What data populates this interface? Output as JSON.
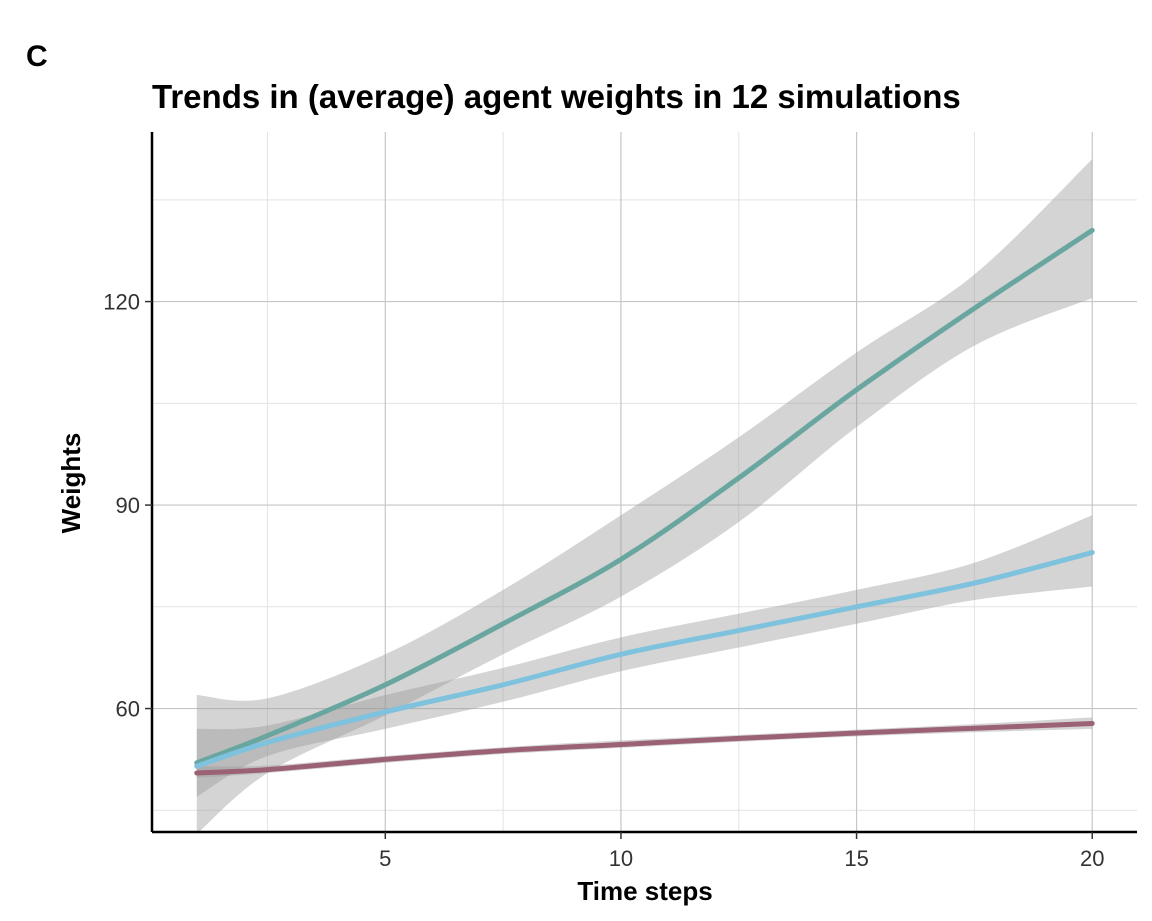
{
  "panel_label": "C",
  "chart_data": {
    "type": "line",
    "title": "Trends in (average) agent weights in 12 simulations",
    "xlabel": "Time steps",
    "ylabel": "Weights",
    "xlim": [
      0.05,
      20.95
    ],
    "ylim": [
      41.8,
      145.0
    ],
    "x_ticks": [
      5,
      10,
      15,
      20
    ],
    "x_tick_labels": [
      "5",
      "10",
      "15",
      "20"
    ],
    "x_minor_ticks": [
      2.5,
      7.5,
      12.5,
      17.5
    ],
    "y_ticks": [
      60,
      90,
      120
    ],
    "y_tick_labels": [
      "60",
      "90",
      "120"
    ],
    "y_minor_ticks": [
      45,
      75,
      105,
      135
    ],
    "grid": true,
    "legend": "none",
    "x": [
      1,
      2.5,
      5,
      7.5,
      10,
      12.5,
      15,
      17.5,
      20
    ],
    "series": [
      {
        "color": "#6aa6a0",
        "values": [
          52.0,
          56.0,
          63.5,
          72.5,
          82.0,
          94.0,
          107.0,
          119.0,
          130.5
        ],
        "lower": [
          41.5,
          50.5,
          59.0,
          68.0,
          76.5,
          87.5,
          101.5,
          113.5,
          120.5
        ],
        "upper": [
          62.0,
          61.5,
          68.0,
          77.5,
          88.5,
          100.0,
          112.5,
          124.0,
          141.0
        ]
      },
      {
        "color": "#7ec2de",
        "values": [
          51.5,
          55.0,
          59.5,
          63.5,
          68.0,
          71.5,
          75.0,
          78.5,
          83.0
        ],
        "lower": [
          47.0,
          53.0,
          57.0,
          61.0,
          65.5,
          69.0,
          72.5,
          76.0,
          78.0
        ],
        "upper": [
          57.0,
          57.5,
          62.0,
          66.0,
          70.5,
          74.0,
          77.5,
          81.5,
          88.5
        ]
      },
      {
        "color": "#9b6276",
        "values": [
          50.5,
          51.0,
          52.5,
          53.8,
          54.7,
          55.6,
          56.4,
          57.1,
          57.8
        ],
        "lower": [
          49.8,
          50.5,
          52.0,
          53.3,
          54.2,
          55.1,
          55.9,
          56.5,
          57.0
        ],
        "upper": [
          51.5,
          51.6,
          53.0,
          54.3,
          55.3,
          56.1,
          56.9,
          57.7,
          58.7
        ]
      }
    ]
  }
}
